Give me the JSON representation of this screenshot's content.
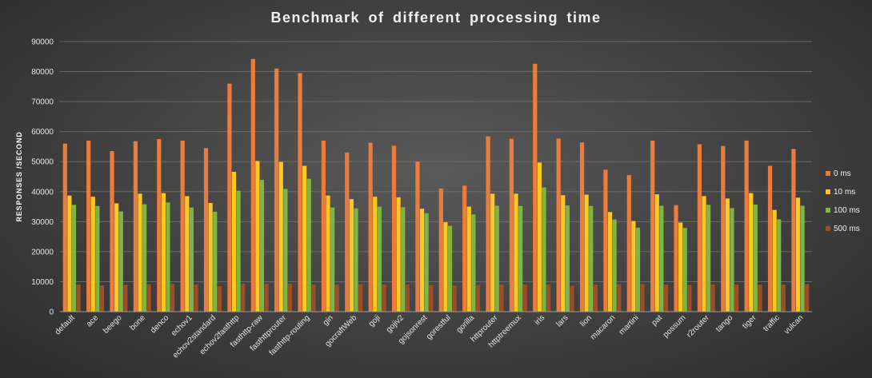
{
  "chart_data": {
    "type": "bar",
    "title": "Benchmark  of  different  processing  time",
    "xlabel": "",
    "ylabel": "RESPONSES /SECOND",
    "ylim": [
      0,
      90000
    ],
    "yticks": [
      0,
      10000,
      20000,
      30000,
      40000,
      50000,
      60000,
      70000,
      80000,
      90000
    ],
    "grid": true,
    "legend_position": "right",
    "categories": [
      "default",
      "ace",
      "beego",
      "bone",
      "denco",
      "echov1",
      "echov2standard",
      "echov2fasthttp",
      "fasthttp-raw",
      "fasthttprouter",
      "fasthttp-routing",
      "gin",
      "gocraftWeb",
      "goji",
      "gojiv2",
      "gojsonrest",
      "gorestful",
      "gorilla",
      "httprouter",
      "httptreemux",
      "iris",
      "lars",
      "lion",
      "macaron",
      "martini",
      "pat",
      "possum",
      "r2router",
      "tango",
      "tiger",
      "traffic",
      "vulcan"
    ],
    "series": [
      {
        "name": "0 ms",
        "color": "#ec7c3c",
        "values": [
          56000,
          57000,
          53500,
          56800,
          57500,
          57000,
          54500,
          76000,
          84200,
          81000,
          79500,
          57000,
          53000,
          56300,
          55300,
          50000,
          41000,
          42000,
          58400,
          57600,
          82600,
          57700,
          56400,
          47300,
          45500,
          57000,
          35500,
          55800,
          55200,
          57000,
          48600,
          54200
        ]
      },
      {
        "name": "10 ms",
        "color": "#ffc81e",
        "values": [
          38700,
          38300,
          36100,
          39300,
          39500,
          38500,
          36200,
          46600,
          50200,
          49900,
          48600,
          38700,
          37500,
          38300,
          38100,
          34300,
          29800,
          35000,
          39300,
          39300,
          49700,
          38800,
          39000,
          33200,
          30200,
          39100,
          29700,
          38500,
          37700,
          39500,
          33900,
          38000
        ]
      },
      {
        "name": "100 ms",
        "color": "#7db642",
        "values": [
          35600,
          35200,
          33400,
          35800,
          36400,
          34700,
          33300,
          40300,
          43900,
          40900,
          44300,
          34700,
          34400,
          35000,
          34800,
          32800,
          28600,
          32400,
          35300,
          35200,
          41400,
          35400,
          35200,
          30700,
          28000,
          35300,
          27900,
          35600,
          34500,
          35700,
          30800,
          35300
        ]
      },
      {
        "name": "500 ms",
        "color": "#9c4e28",
        "values": [
          9100,
          8800,
          8900,
          9200,
          9300,
          9100,
          8500,
          9300,
          9300,
          9300,
          9000,
          9000,
          9100,
          9100,
          9000,
          8900,
          8700,
          8900,
          9000,
          9100,
          9000,
          8600,
          9000,
          9200,
          9200,
          9000,
          8900,
          9100,
          9100,
          9000,
          9100,
          9200
        ]
      }
    ]
  }
}
